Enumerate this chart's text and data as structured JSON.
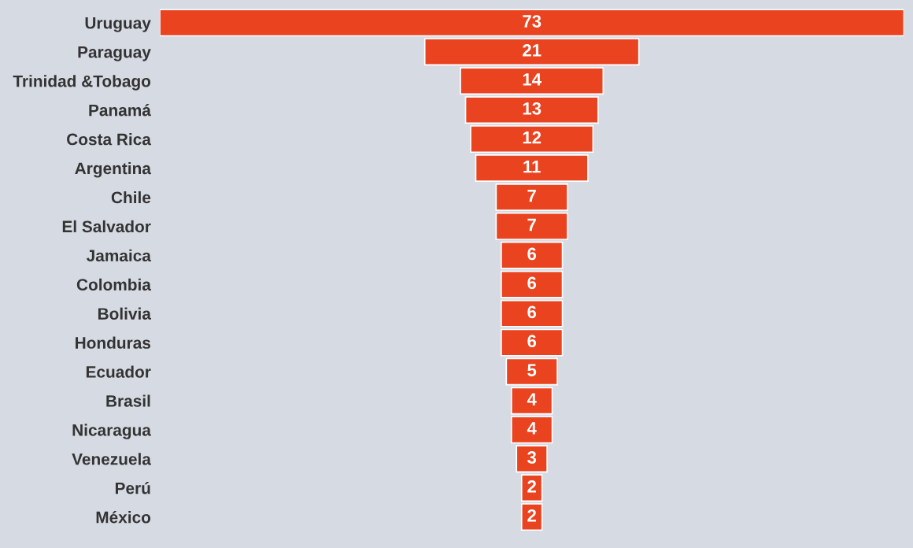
{
  "chart_data": {
    "type": "other",
    "categories": [
      "Uruguay",
      "Paraguay",
      "Trinidad &Tobago",
      "Panamá",
      "Costa Rica",
      "Argentina",
      "Chile",
      "El Salvador",
      "Jamaica",
      "Colombia",
      "Bolivia",
      "Honduras",
      "Ecuador",
      "Brasil",
      "Nicaragua",
      "Venezuela",
      "Perú",
      "México"
    ],
    "values": [
      73,
      21,
      14,
      13,
      12,
      11,
      7,
      7,
      6,
      6,
      6,
      6,
      5,
      4,
      4,
      3,
      2,
      2
    ],
    "color": "#e9431f",
    "data_labels": true
  }
}
